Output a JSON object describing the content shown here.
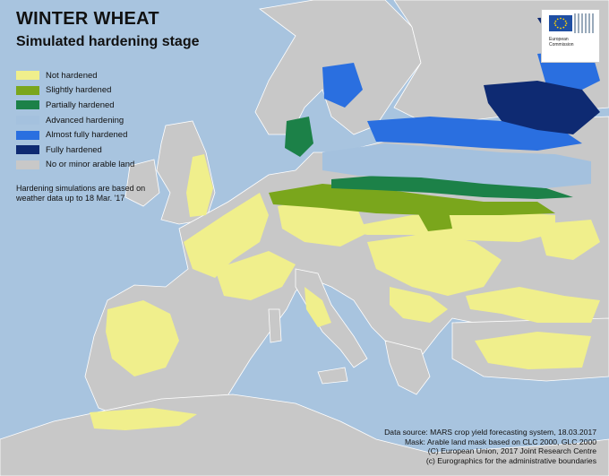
{
  "title": "WINTER WHEAT",
  "subtitle": "Simulated hardening stage",
  "legend": [
    {
      "label": "Not hardened",
      "color": "#f0ef8c"
    },
    {
      "label": "Slightly hardened",
      "color": "#7aa61c"
    },
    {
      "label": "Partially hardened",
      "color": "#1c8148"
    },
    {
      "label": "Advanced hardening",
      "color": "#a4c1de"
    },
    {
      "label": "Almost fully hardened",
      "color": "#2a6fe0"
    },
    {
      "label": "Fully hardened",
      "color": "#0e2a72"
    },
    {
      "label": "No or minor arable land",
      "color": "#c8c8c8"
    }
  ],
  "note": "Hardening simulations are based on weather data up to 18 Mar. '17",
  "logo": {
    "text_line1": "European",
    "text_line2": "Commission"
  },
  "credits": [
    "Data source: MARS crop yield forecasting system, 18.03.2017",
    "Mask: Arable land mask based on CLC 2000, GLC 2000",
    "(C) European Union, 2017 Joint Research Centre",
    "(c) Eurographics for the administrative boundaries"
  ],
  "colors": {
    "sea": "#a8c4df",
    "land": "#c8c8c8",
    "border": "#ffffff"
  }
}
